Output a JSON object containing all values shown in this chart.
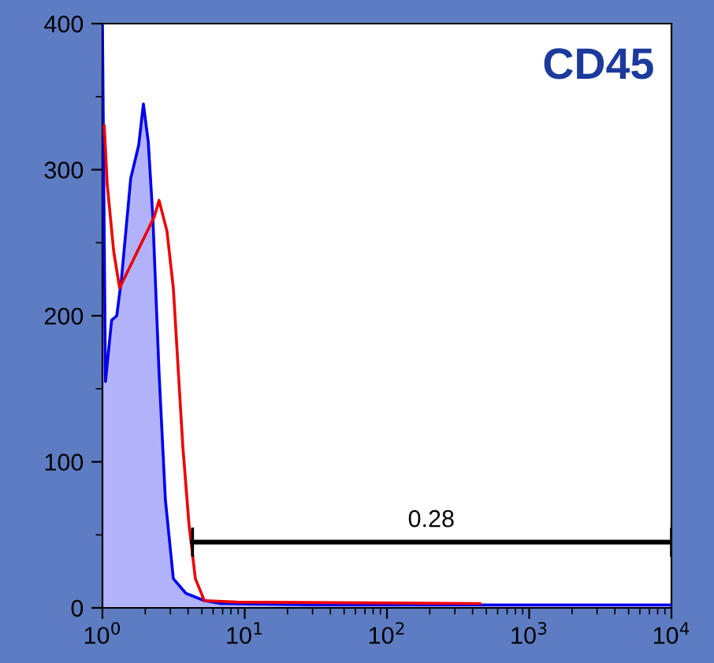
{
  "chart_data": {
    "type": "line",
    "title": "CD45",
    "series": [
      {
        "type": "area",
        "color": "#0000ee",
        "x": [
          1.0,
          1.05,
          1.16,
          1.26,
          1.36,
          1.58,
          1.8,
          1.94,
          2.1,
          2.26,
          2.5,
          2.77,
          3.15,
          3.86,
          5.2,
          6.8,
          31,
          10000
        ],
        "values": [
          400,
          155,
          197,
          200,
          225,
          294,
          317,
          345,
          319,
          268,
          161,
          74,
          20,
          10,
          5,
          3,
          2,
          2
        ]
      },
      {
        "color": "#ee0000",
        "x": [
          1.03,
          1.08,
          1.2,
          1.32,
          2.32,
          2.5,
          2.84,
          3.15,
          3.4,
          3.67,
          4.06,
          4.5,
          5.2,
          8.8,
          450
        ],
        "values": [
          330,
          290,
          244,
          219,
          268,
          279,
          258,
          219,
          165,
          111,
          57,
          20,
          5,
          4,
          3
        ]
      },
      {
        "type": "line",
        "color": "#000000",
        "x": [
          4.3,
          10000
        ],
        "values": [
          45,
          45
        ],
        "errors": [
          10,
          10
        ]
      }
    ],
    "annotations": [
      {
        "text": "0.28",
        "x": 205,
        "y": 52
      }
    ],
    "log": "x",
    "xlim": [
      1,
      10000
    ],
    "xticks": [
      {
        "value": 1,
        "label": "10$^{0}$"
      },
      {
        "value": 10,
        "label": "10$^{1}$"
      },
      {
        "value": 100,
        "label": "10$^{2}$"
      },
      {
        "value": 1000,
        "label": "10$^{3}$"
      },
      {
        "value": 10000,
        "label": "10$^{4}$"
      }
    ],
    "ylim": [
      0,
      400
    ],
    "yticks": [
      0,
      100,
      200,
      300,
      400
    ],
    "grid": false,
    "legend": false
  }
}
